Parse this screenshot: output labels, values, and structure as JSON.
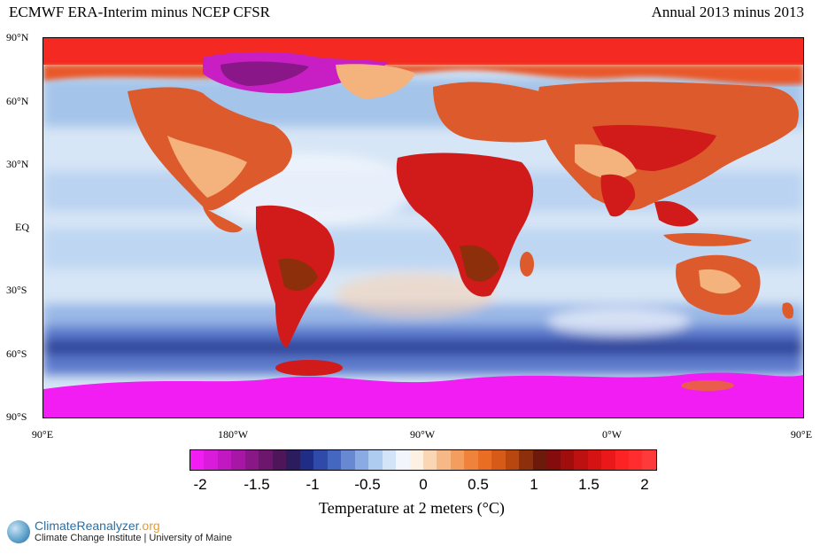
{
  "header": {
    "title_left": "ECMWF ERA-Interim minus NCEP CFSR",
    "title_right": "Annual 2013 minus 2013"
  },
  "map": {
    "lat_labels": [
      "90°N",
      "60°N",
      "30°N",
      "EQ",
      "30°S",
      "60°S",
      "90°S"
    ],
    "lon_labels": [
      "90°E",
      "180°W",
      "90°W",
      "0°W",
      "90°E"
    ],
    "colors": {
      "ocean_light": "#d7e6f6",
      "ocean_mid": "#9fc0e8",
      "ocean_deep": "#4f6fc6",
      "warm_light": "#f4b27c",
      "warm": "#dd5a2c",
      "warm_hot": "#d11a1a",
      "hot_max": "#ff2a2a",
      "cold_max": "#f21df2",
      "cold_purple": "#b11bb1"
    }
  },
  "colorbar": {
    "colors": [
      "#f21df2",
      "#db1bdb",
      "#c218c2",
      "#a617a6",
      "#8a1788",
      "#6d166e",
      "#4e1658",
      "#2b1c5e",
      "#1f2d86",
      "#2f4aa8",
      "#4667c0",
      "#6888d2",
      "#8aaae2",
      "#aecbf0",
      "#d3e3f8",
      "#f2f6fc",
      "#fdf1e4",
      "#fbd6b5",
      "#f6b886",
      "#f39d5e",
      "#ef833b",
      "#e96d22",
      "#d65a18",
      "#b8460f",
      "#8c2f0a",
      "#6e1a0a",
      "#850c0c",
      "#a00d0d",
      "#bd1010",
      "#d51313",
      "#ea1818",
      "#fb2323",
      "#ff2d2d",
      "#ff3a3a"
    ],
    "tick_labels": [
      "-2",
      "-1.5",
      "-1",
      "-0.5",
      "0",
      "0.5",
      "1",
      "1.5",
      "2"
    ],
    "label": "Temperature at 2 meters (°C)"
  },
  "footer": {
    "brand_climate": "Climate",
    "brand_reanalyzer": "Reanalyzer",
    "brand_org": ".org",
    "subtitle": "Climate Change Institute | University of Maine"
  }
}
